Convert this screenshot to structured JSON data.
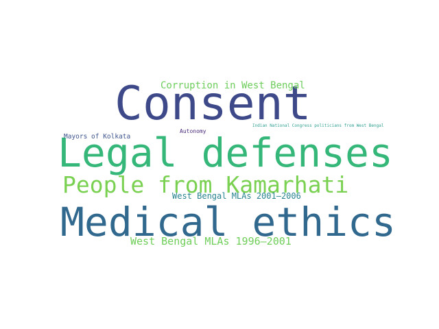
{
  "words": [
    {
      "id": "consent",
      "text": "Consent",
      "color": "#3e4989"
    },
    {
      "id": "legal-defenses",
      "text": "Legal defenses",
      "color": "#35b779"
    },
    {
      "id": "medical-ethics",
      "text": "Medical ethics",
      "color": "#31688e"
    },
    {
      "id": "people-from-kamarhati",
      "text": "People from Kamarhati",
      "color": "#7ad151"
    },
    {
      "id": "corruption-in-west-bengal",
      "text": "Corruption in West Bengal",
      "color": "#6ccd5a"
    },
    {
      "id": "west-bengal-mlas-1996-2001",
      "text": "West Bengal MLAs 1996–2001",
      "color": "#6ece58"
    },
    {
      "id": "west-bengal-mlas-2001-2006",
      "text": "West Bengal MLAs 2001–2006",
      "color": "#26828e"
    },
    {
      "id": "mayors-of-kolkata",
      "text": "Mayors of Kolkata",
      "color": "#3b528b"
    },
    {
      "id": "autonomy",
      "text": "Autonomy",
      "color": "#482878"
    },
    {
      "id": "indian-national-congress",
      "text": "Indian National Congress politicians from West Bengal",
      "color": "#2a9d8f"
    }
  ]
}
